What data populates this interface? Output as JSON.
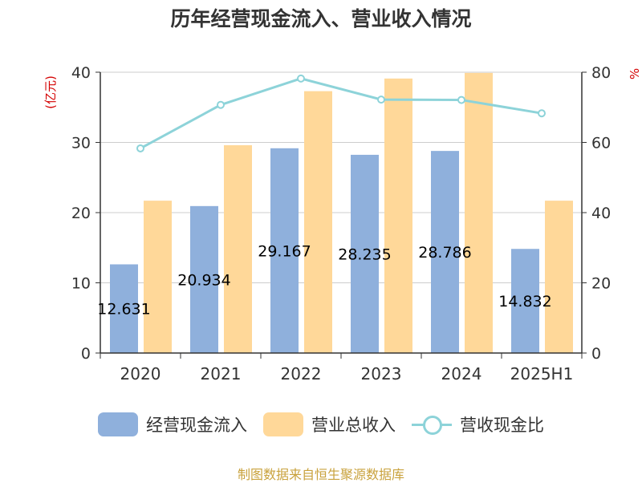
{
  "chart_data": {
    "type": "bar",
    "title": "历年经营现金流入、营业收入情况",
    "categories": [
      "2020",
      "2021",
      "2022",
      "2023",
      "2024",
      "2025H1"
    ],
    "left_axis": {
      "unit": "(亿元)",
      "ylim": [
        0,
        40
      ],
      "ticks": [
        0,
        10,
        20,
        30,
        40
      ]
    },
    "right_axis": {
      "unit": "%",
      "ylim": [
        0,
        80
      ],
      "ticks": [
        0,
        20,
        40,
        60,
        80
      ]
    },
    "grid": true,
    "legend_position": "bottom",
    "series": [
      {
        "name": "经营现金流入",
        "type": "bar",
        "axis": "left",
        "color": "#8fb0dc",
        "values": [
          12.631,
          20.934,
          29.167,
          28.235,
          28.786,
          14.832
        ],
        "labels": [
          "12.631",
          "20.934",
          "29.167",
          "28.235",
          "28.786",
          "14.832"
        ]
      },
      {
        "name": "营业总收入",
        "type": "bar",
        "axis": "left",
        "color": "#ffd899",
        "values": [
          21.7,
          29.6,
          37.3,
          39.1,
          39.9,
          21.7
        ]
      },
      {
        "name": "营收现金比",
        "type": "line",
        "axis": "right",
        "color": "#8dd3d9",
        "values": [
          58.3,
          70.7,
          78.2,
          72.2,
          72.1,
          68.3
        ]
      }
    ]
  },
  "source": "制图数据来自恒生聚源数据库"
}
